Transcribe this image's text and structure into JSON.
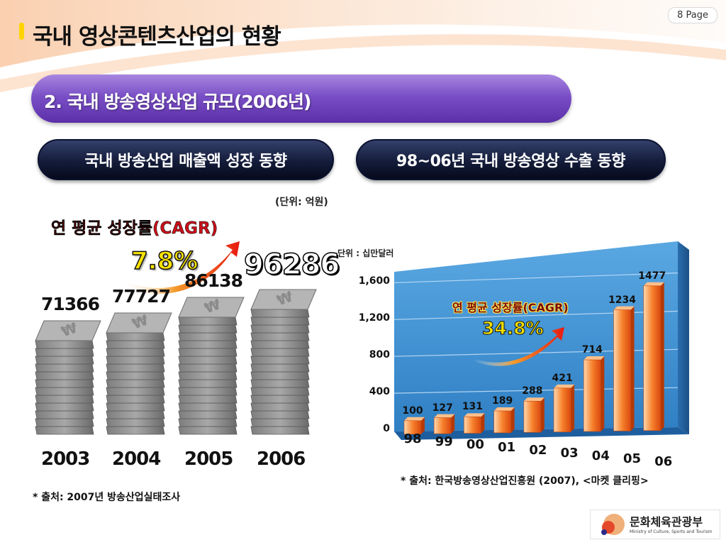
{
  "header": {
    "page_label": "8 Page",
    "title": "국내 영상콘텐츠산업의 현황",
    "section_title": "2. 국내 방송영상산업 규모(2006년)"
  },
  "panels": {
    "left_title": "국내 방송산업 매출액 성장 동향",
    "right_title": "98~06년 국내 방송영상 수출 동향"
  },
  "left": {
    "unit": "(단위: 억원)",
    "cagr_label": "연 평균 성장률(CAGR)",
    "cagr_value": "7.8%",
    "source": "* 출처: 2007년 방송산업실태조사"
  },
  "right": {
    "unit": "단위 : 십만달러",
    "cagr_label": "연 평균 성장률(CAGR)",
    "cagr_value": "34.8%",
    "source": "* 출처: 한국방송영상산업진흥원 (2007), <마켓 클리핑>",
    "yticks": [
      "1,600",
      "1,200",
      "800",
      "400",
      "0"
    ]
  },
  "logo": {
    "name": "문화체육관광부",
    "subtitle": "Ministry of Culture, Sports and Tourism"
  },
  "colors": {
    "section_purple": "#7a4fc6",
    "pill_navy": "#141c3a",
    "bar_orange": "#f26a1b",
    "chart_blue": "#3a8fd0",
    "cagr_yellow": "#f7e200"
  },
  "chart_data": [
    {
      "type": "bar",
      "style": "stacked-coins",
      "categories": [
        "2003",
        "2004",
        "2005",
        "2006"
      ],
      "values": [
        71366,
        77727,
        86138,
        96286
      ],
      "value_labels": [
        "71366",
        "77727",
        "86138",
        "96286"
      ],
      "title": "국내 방송산업 매출액 성장 동향",
      "unit": "(단위: 억원)",
      "annotation": "연 평균 성장률(CAGR) 7.8%",
      "ylim": [
        0,
        100000
      ]
    },
    {
      "type": "bar",
      "categories": [
        "98",
        "99",
        "00",
        "01",
        "02",
        "03",
        "04",
        "05",
        "06"
      ],
      "values": [
        100,
        127,
        131,
        189,
        288,
        421,
        714,
        1234,
        1477
      ],
      "title": "98~06년 국내 방송영상 수출 동향",
      "unit": "단위 : 십만달러",
      "annotation": "연 평균 성장률(CAGR) 34.8%",
      "ylim": [
        0,
        1600
      ],
      "yticks": [
        0,
        400,
        800,
        1200,
        1600
      ],
      "grid": true
    }
  ]
}
